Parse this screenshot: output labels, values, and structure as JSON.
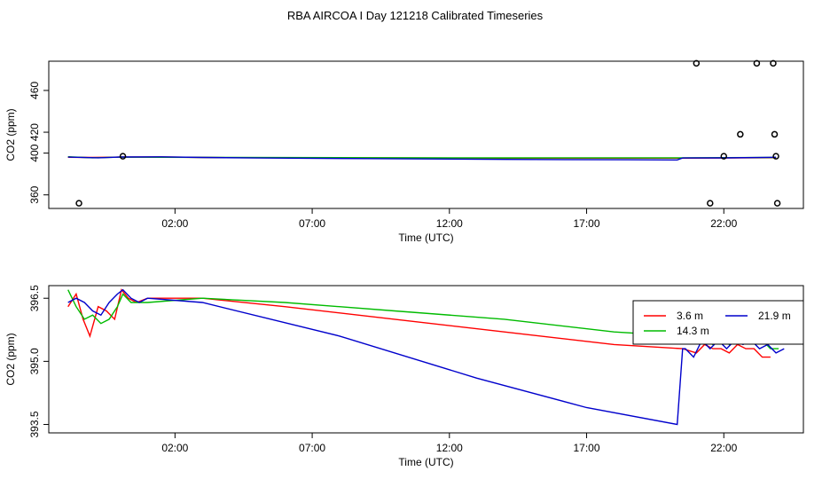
{
  "title": "RBA AIRCOA I  Day 121218  Calibrated Timeseries",
  "chart_data": [
    {
      "type": "line",
      "xlabel": "Time (UTC)",
      "ylabel": "CO2 (ppm)",
      "x_unit": "hours UTC",
      "xlim": [
        -2.6,
        24.9
      ],
      "ylim": [
        347,
        488
      ],
      "x_ticks": [
        {
          "value": 2,
          "label": "02:00"
        },
        {
          "value": 7,
          "label": "07:00"
        },
        {
          "value": 12,
          "label": "12:00"
        },
        {
          "value": 17,
          "label": "17:00"
        },
        {
          "value": 22,
          "label": "22:00"
        }
      ],
      "y_ticks": [
        {
          "value": 360,
          "label": "360"
        },
        {
          "value": 400,
          "label": "400"
        },
        {
          "value": 420,
          "label": "420"
        },
        {
          "value": 460,
          "label": "460"
        }
      ],
      "series": [
        {
          "color": "#ff0000",
          "x": [
            -1.9,
            -1.0,
            0.0,
            1.5,
            4.0,
            9.0,
            14.0,
            20.5,
            23.9
          ],
          "y": [
            396.0,
            395.8,
            396.2,
            396.3,
            395.6,
            395.4,
            395.2,
            395.2,
            395.6
          ]
        },
        {
          "color": "#00bb00",
          "x": [
            -1.9,
            -1.0,
            0.0,
            1.5,
            4.0,
            9.0,
            14.0,
            20.5,
            23.9
          ],
          "y": [
            396.5,
            395.5,
            396.2,
            396.0,
            395.8,
            395.6,
            395.4,
            395.5,
            395.8
          ]
        },
        {
          "color": "#0000cc",
          "x": [
            -1.9,
            -0.8,
            0.0,
            1.5,
            3.0,
            5.0,
            9.0,
            14.0,
            18.5,
            20.3,
            20.5,
            22.0,
            23.9
          ],
          "y": [
            396.2,
            395.5,
            396.3,
            396.4,
            395.8,
            395.3,
            394.7,
            394.0,
            393.6,
            393.5,
            395.3,
            395.4,
            396.0
          ]
        }
      ],
      "outliers": {
        "color": "#000000",
        "x": [
          -1.5,
          0.1,
          21.0,
          21.5,
          22.0,
          22.6,
          23.2,
          23.8,
          23.85,
          23.9,
          23.95
        ],
        "y": [
          352,
          397,
          486,
          352,
          397,
          418,
          486,
          486,
          418,
          397,
          352
        ]
      }
    },
    {
      "type": "line",
      "xlabel": "Time (UTC)",
      "ylabel": "CO2 (ppm)",
      "x_unit": "hours UTC",
      "xlim": [
        -2.6,
        24.9
      ],
      "ylim": [
        393.3,
        396.8
      ],
      "x_ticks": [
        {
          "value": 2,
          "label": "02:00"
        },
        {
          "value": 7,
          "label": "07:00"
        },
        {
          "value": 12,
          "label": "12:00"
        },
        {
          "value": 17,
          "label": "17:00"
        },
        {
          "value": 22,
          "label": "22:00"
        }
      ],
      "y_ticks": [
        {
          "value": 393.5,
          "label": "393.5"
        },
        {
          "value": 395.0,
          "label": "395.0"
        },
        {
          "value": 396.5,
          "label": "396.5"
        }
      ],
      "legend": {
        "position": "top-right",
        "layout": "2 columns"
      },
      "series": [
        {
          "name": "3.6 m",
          "color": "#ff0000",
          "x": [
            -1.9,
            -1.6,
            -1.35,
            -1.1,
            -0.8,
            -0.5,
            -0.2,
            0.05,
            0.3,
            0.6,
            1.0,
            3.0,
            6.0,
            10.0,
            14.0,
            18.0,
            20.5,
            21.0,
            21.3,
            21.6,
            21.9,
            22.2,
            22.5,
            22.8,
            23.1,
            23.4,
            23.7
          ],
          "y": [
            396.3,
            396.6,
            396.0,
            395.6,
            396.3,
            396.2,
            396.0,
            396.7,
            396.5,
            396.4,
            396.5,
            396.5,
            396.3,
            396.0,
            395.7,
            395.4,
            395.3,
            395.2,
            395.4,
            395.3,
            395.3,
            395.2,
            395.4,
            395.3,
            395.3,
            395.1,
            395.1
          ]
        },
        {
          "name": "14.3 m",
          "color": "#00bb00",
          "x": [
            -1.9,
            -1.6,
            -1.3,
            -1.0,
            -0.7,
            -0.4,
            -0.1,
            0.1,
            0.4,
            0.7,
            1.0,
            3.0,
            6.0,
            10.0,
            14.0,
            18.0,
            20.5,
            21.0,
            21.3,
            21.6,
            21.9,
            22.2,
            22.5,
            22.8,
            23.1,
            23.4,
            23.7,
            24.0
          ],
          "y": [
            396.7,
            396.3,
            396.0,
            396.1,
            395.9,
            396.0,
            396.3,
            396.6,
            396.4,
            396.4,
            396.4,
            396.5,
            396.4,
            396.2,
            396.0,
            395.7,
            395.6,
            395.6,
            395.5,
            395.4,
            395.9,
            395.4,
            395.6,
            395.5,
            395.5,
            395.5,
            395.3,
            395.3
          ]
        },
        {
          "name": "21.9 m",
          "color": "#0000cc",
          "x": [
            -1.9,
            -1.6,
            -1.3,
            -1.0,
            -0.7,
            -0.4,
            -0.1,
            0.1,
            0.4,
            0.7,
            1.0,
            3.0,
            8.0,
            13.0,
            17.0,
            20.3,
            20.5,
            20.6,
            20.9,
            21.2,
            21.5,
            21.8,
            22.1,
            22.4,
            22.7,
            23.0,
            23.3,
            23.6,
            23.9,
            24.2
          ],
          "y": [
            396.4,
            396.5,
            396.4,
            396.2,
            396.1,
            396.4,
            396.6,
            396.7,
            396.5,
            396.4,
            396.5,
            396.4,
            395.6,
            394.6,
            393.9,
            393.5,
            395.3,
            395.3,
            395.1,
            395.5,
            395.3,
            395.5,
            395.3,
            395.5,
            395.4,
            395.5,
            395.3,
            395.4,
            395.2,
            395.3
          ]
        }
      ]
    }
  ]
}
